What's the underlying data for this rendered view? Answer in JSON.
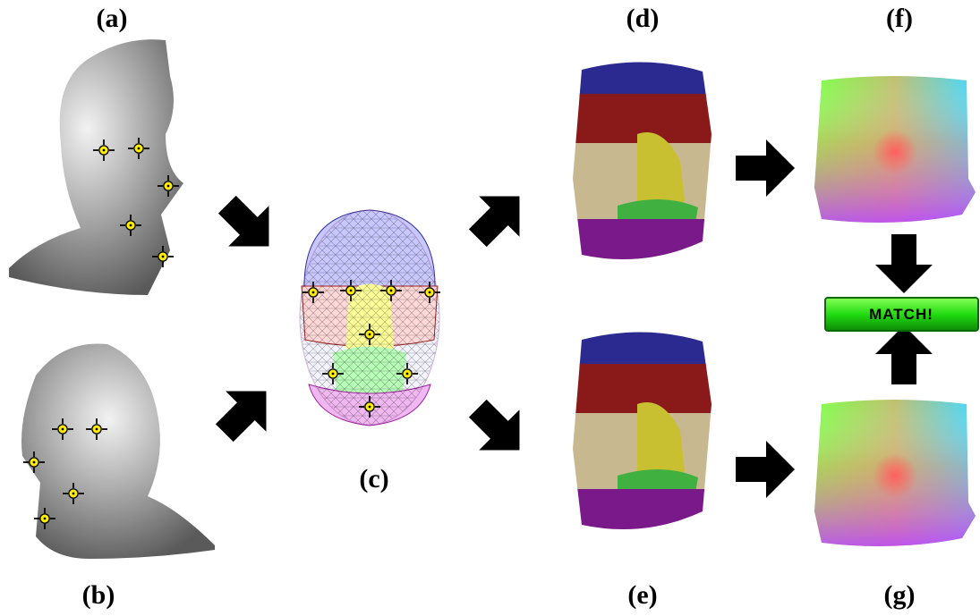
{
  "labels": [
    "(a)",
    "(b)",
    "(c)",
    "(d)",
    "(e)",
    "(f)",
    "(g)"
  ],
  "button": "MATCH!"
}
